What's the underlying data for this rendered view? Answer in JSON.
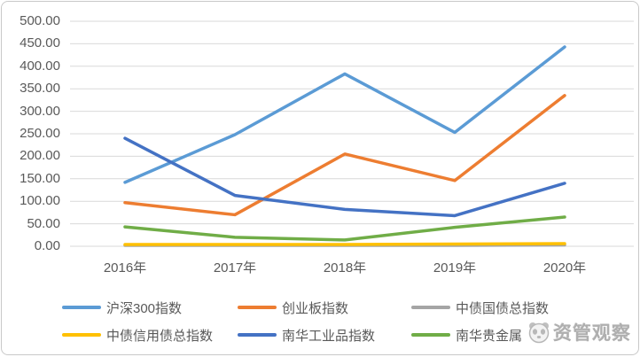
{
  "watermark": {
    "text": "资管观察",
    "icon": "panda-logo-icon"
  },
  "chart_data": {
    "type": "line",
    "categories": [
      "2016年",
      "2017年",
      "2018年",
      "2019年",
      "2020年"
    ],
    "series": [
      {
        "name": "沪深300指数",
        "color": "#5B9BD5",
        "values": [
          142,
          248,
          383,
          253,
          443
        ]
      },
      {
        "name": "创业板指数",
        "color": "#ED7D31",
        "values": [
          97,
          70,
          205,
          146,
          335
        ]
      },
      {
        "name": "中债国债总指数",
        "color": "#A5A5A5",
        "values": [
          2,
          2,
          2,
          2,
          3
        ]
      },
      {
        "name": "中债信用债总指数",
        "color": "#FFC000",
        "values": [
          4,
          4,
          4,
          5,
          6
        ]
      },
      {
        "name": "南华工业品指数",
        "color": "#4472C4",
        "values": [
          240,
          113,
          82,
          68,
          140
        ]
      },
      {
        "name": "南华贵金属",
        "color": "#70AD47",
        "values": [
          43,
          20,
          14,
          42,
          65
        ]
      }
    ],
    "title": "",
    "xlabel": "",
    "ylabel": "",
    "ylim": [
      0,
      500
    ],
    "ytick_step": 50,
    "yticks": [
      "0.00",
      "50.00",
      "100.00",
      "150.00",
      "200.00",
      "250.00",
      "300.00",
      "350.00",
      "400.00",
      "450.00",
      "500.00"
    ],
    "grid": true,
    "gridline_color": "#D9D9D9",
    "legend_position": "bottom",
    "legend_rows": [
      [
        0,
        1,
        2
      ],
      [
        3,
        4,
        5
      ]
    ]
  }
}
